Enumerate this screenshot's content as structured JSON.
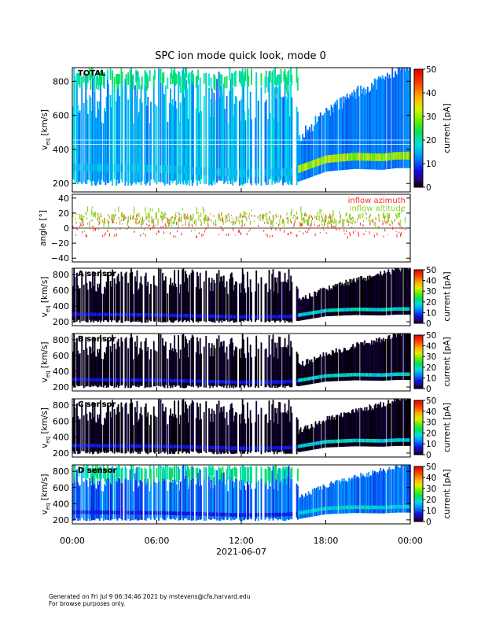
{
  "title": "SPC ion mode quick look, mode 0",
  "footer": {
    "line1": "Generated on Fri Jul  9 06:34:46 2021 by mstevens@cfa.harvard.edu",
    "line2": "For browse purposes only."
  },
  "colors": {
    "azimuth": "#ff2a2a",
    "altitude": "#8cd21e",
    "background_dark": "#000000"
  },
  "chart_data": [
    {
      "type": "heatmap",
      "panel": "total",
      "label": "TOTAL",
      "ylabel": "v_eq [km/s]",
      "ylabel_main": "v",
      "ylabel_sub": "eq",
      "ylabel_unit": "[km/s]",
      "ylim": [
        150,
        880
      ],
      "yticks": [
        "200",
        "400",
        "600",
        "800"
      ],
      "ytick_values": [
        200,
        400,
        600,
        800
      ],
      "colorbar": {
        "label": "current [pA]",
        "range": [
          0,
          50
        ],
        "ticks": [
          "0",
          "10",
          "20",
          "30",
          "40",
          "50"
        ]
      },
      "core_speed_trend": {
        "time_h": [
          0,
          6,
          12,
          15,
          16,
          17,
          18,
          20,
          22,
          23
        ],
        "speed": [
          300,
          290,
          265,
          270,
          280,
          310,
          340,
          355,
          350,
          360
        ]
      }
    },
    {
      "type": "scatter",
      "panel": "angle",
      "ylabel": "angle [°]",
      "ylim": [
        -45,
        45
      ],
      "yticks": [
        "−40",
        "−20",
        "0",
        "20",
        "40"
      ],
      "ytick_values": [
        -40,
        -20,
        0,
        20,
        40
      ],
      "series": [
        {
          "name": "inflow azimuth",
          "color": "#ff2a2a"
        },
        {
          "name": "inflow altitude",
          "color": "#8cd21e"
        }
      ]
    },
    {
      "type": "heatmap",
      "panel": "sensor-a",
      "label": "A sensor",
      "ylabel": "v_eq [km/s]",
      "ylim": [
        150,
        880
      ],
      "yticks": [
        "200",
        "400",
        "600",
        "800"
      ],
      "ytick_values": [
        200,
        400,
        600,
        800
      ],
      "colorbar": {
        "label": "current [pA]",
        "range": [
          0,
          50
        ],
        "ticks": [
          "0",
          "10",
          "20",
          "30",
          "40",
          "50"
        ]
      }
    },
    {
      "type": "heatmap",
      "panel": "sensor-b",
      "label": "B sensor",
      "ylabel": "v_eq [km/s]",
      "ylim": [
        150,
        880
      ],
      "yticks": [
        "200",
        "400",
        "600",
        "800"
      ],
      "ytick_values": [
        200,
        400,
        600,
        800
      ],
      "colorbar": {
        "label": "current [pA]",
        "range": [
          0,
          50
        ],
        "ticks": [
          "0",
          "10",
          "20",
          "30",
          "40",
          "50"
        ]
      }
    },
    {
      "type": "heatmap",
      "panel": "sensor-c",
      "label": "C sensor",
      "ylabel": "v_eq [km/s]",
      "ylim": [
        150,
        880
      ],
      "yticks": [
        "200",
        "400",
        "600",
        "800"
      ],
      "ytick_values": [
        200,
        400,
        600,
        800
      ],
      "colorbar": {
        "label": "current [pA]",
        "range": [
          0,
          50
        ],
        "ticks": [
          "0",
          "10",
          "20",
          "30",
          "40",
          "50"
        ]
      }
    },
    {
      "type": "heatmap",
      "panel": "sensor-d",
      "label": "D sensor",
      "ylabel": "v_eq [km/s]",
      "ylim": [
        150,
        880
      ],
      "yticks": [
        "200",
        "400",
        "600",
        "800"
      ],
      "ytick_values": [
        200,
        400,
        600,
        800
      ],
      "colorbar": {
        "label": "current [pA]",
        "range": [
          0,
          50
        ],
        "ticks": [
          "0",
          "10",
          "20",
          "30",
          "40",
          "50"
        ]
      }
    }
  ],
  "xaxis": {
    "ticks": [
      "00:00",
      "06:00",
      "12:00",
      "18:00",
      "00:00"
    ],
    "tick_hours": [
      0,
      6,
      12,
      18,
      24
    ],
    "date_label": "2021-06-07"
  }
}
